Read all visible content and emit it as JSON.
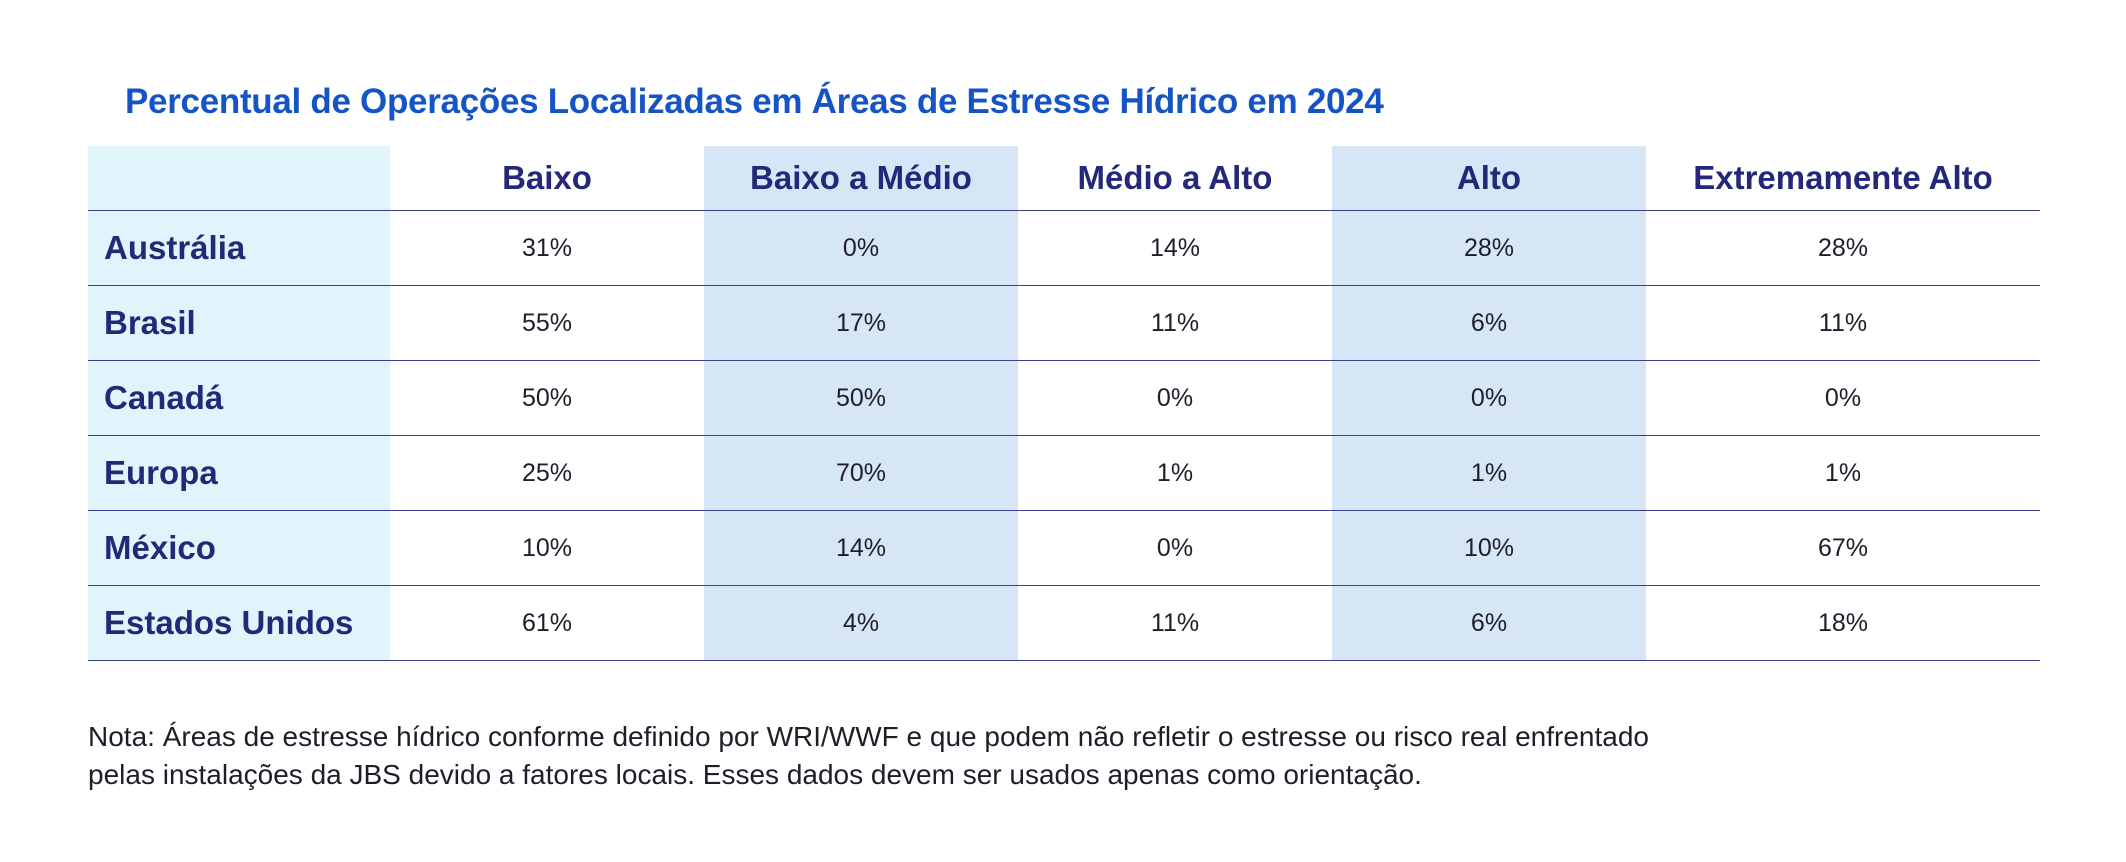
{
  "title": "Percentual de Operações Localizadas em Áreas de Estresse Hídrico em 2024",
  "table": {
    "columns": [
      "Baixo",
      "Baixo a Médio",
      "Médio a Alto",
      "Alto",
      "Extremamente Alto"
    ],
    "rows": [
      {
        "country": "Austrália",
        "values": [
          "31%",
          "0%",
          "14%",
          "28%",
          "28%"
        ]
      },
      {
        "country": "Brasil",
        "values": [
          "55%",
          "17%",
          "11%",
          "6%",
          "11%"
        ]
      },
      {
        "country": "Canadá",
        "values": [
          "50%",
          "50%",
          "0%",
          "0%",
          "0%"
        ]
      },
      {
        "country": "Europa",
        "values": [
          "25%",
          "70%",
          "1%",
          "1%",
          "1%"
        ]
      },
      {
        "country": "México",
        "values": [
          "10%",
          "14%",
          "0%",
          "10%",
          "67%"
        ]
      },
      {
        "country": "Estados Unidos",
        "values": [
          "61%",
          "4%",
          "11%",
          "6%",
          "18%"
        ]
      }
    ]
  },
  "note": {
    "line1": "Nota: Áreas de estresse hídrico conforme definido por WRI/WWF e que podem não refletir o estresse ou risco real enfrentado",
    "line2": "pelas instalações da JBS devido a fatores locais. Esses dados devem ser usados apenas como orientação."
  },
  "colors": {
    "title": "#1554c4",
    "header_text": "#232878",
    "country_column_bg": "#e2f4fb",
    "striped_column_bg": "#d7e6f6",
    "row_divider": "#3b3f8f"
  }
}
